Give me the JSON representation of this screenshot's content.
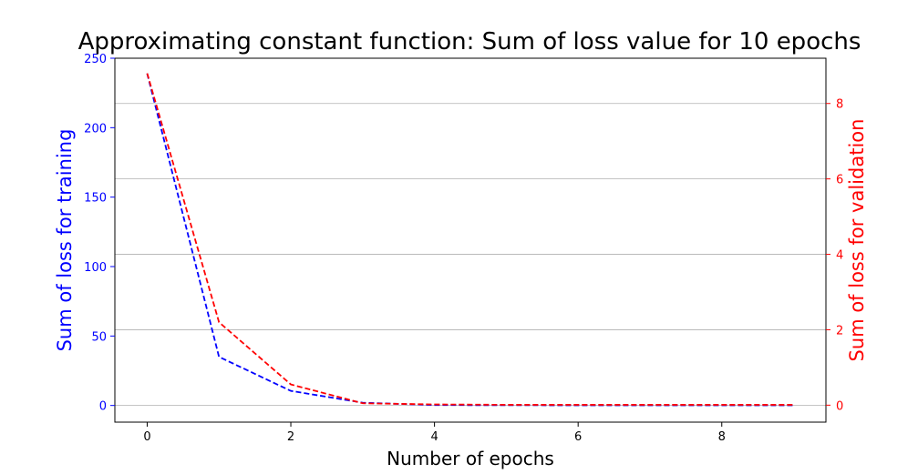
{
  "chart_data": {
    "type": "line",
    "title": "Approximating constant function: Sum of loss value for 10 epochs",
    "xlabel": "Number of epochs",
    "ylabel_left": "Sum of loss for training",
    "ylabel_right": "Sum of loss for validation",
    "x": [
      0,
      1,
      2,
      3,
      4,
      5,
      6,
      7,
      8,
      9
    ],
    "xlim": [
      -0.45,
      9.45
    ],
    "ylim_left": [
      -12,
      250
    ],
    "ylim_right": [
      -0.45,
      9.2
    ],
    "x_ticks": [
      "0",
      "2",
      "4",
      "6",
      "8"
    ],
    "y_left_ticks": [
      "0",
      "50",
      "100",
      "150",
      "200",
      "250"
    ],
    "y_right_ticks": [
      "0",
      "2",
      "4",
      "6",
      "8"
    ],
    "grid": "horizontal (right axis)",
    "series": [
      {
        "axis": "left",
        "color": "#0000ff",
        "style": "dashed",
        "values": [
          239,
          35,
          10.5,
          2,
          0.3,
          0.2,
          0.15,
          0.1,
          0.1,
          0.1
        ]
      },
      {
        "axis": "right",
        "color": "#ff0000",
        "style": "dashed",
        "values": [
          8.8,
          2.2,
          0.55,
          0.05,
          0.02,
          0.01,
          0.01,
          0.01,
          0.01,
          0.01
        ]
      }
    ]
  }
}
